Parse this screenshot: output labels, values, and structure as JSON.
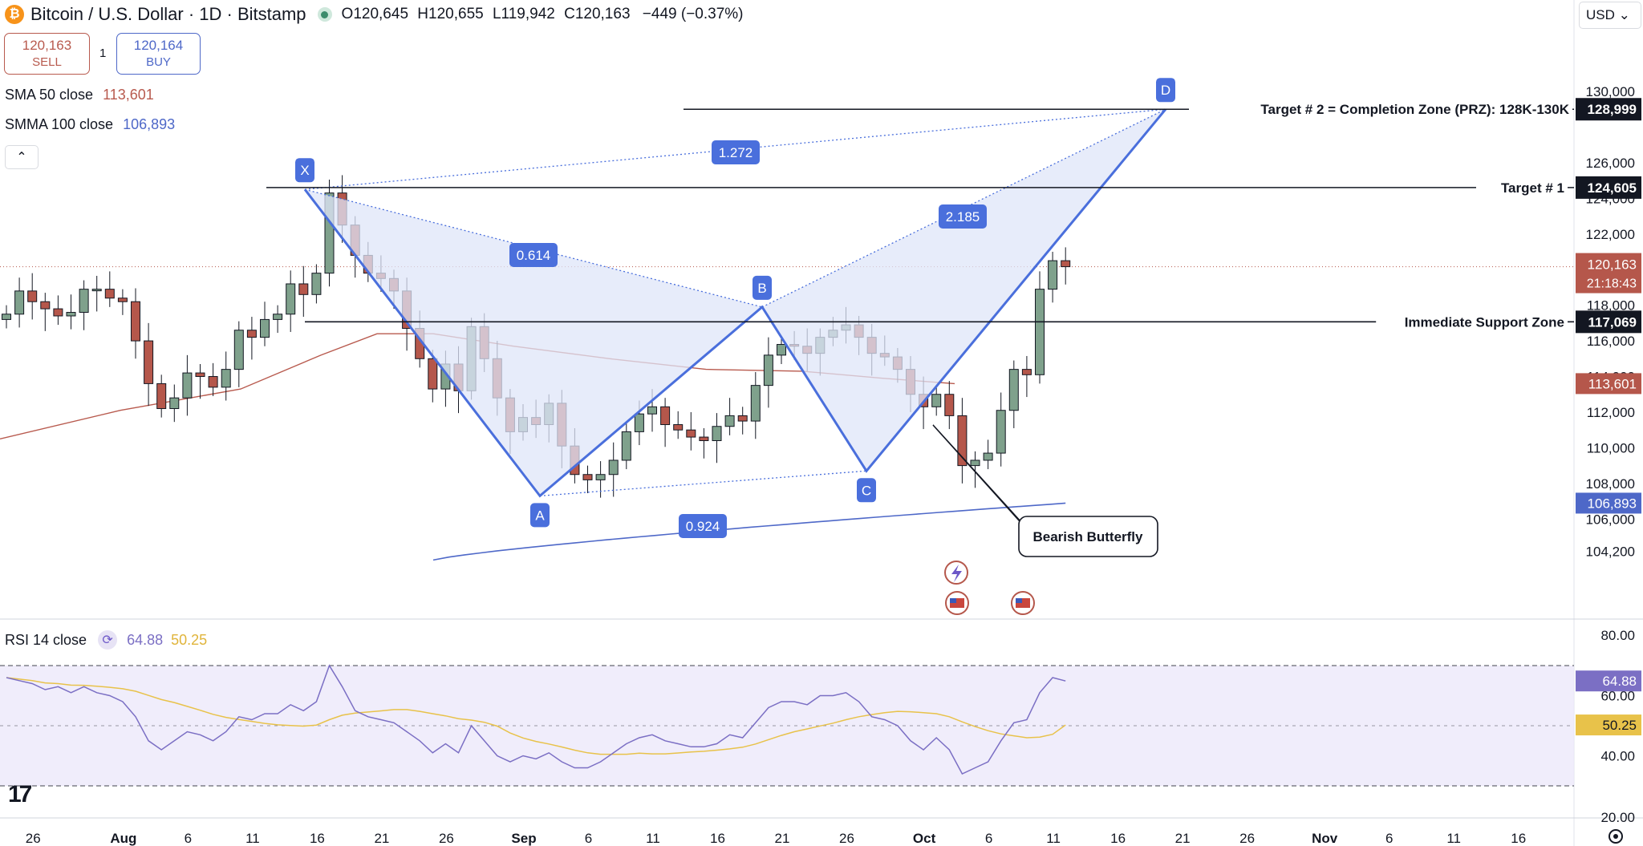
{
  "header": {
    "title": "Bitcoin / U.S. Dollar · 1D · Bitstamp",
    "open": "O120,645",
    "high": "H120,655",
    "low": "L119,942",
    "close": "C120,163",
    "change": "−449 (−0.37%)"
  },
  "trade": {
    "sell_price": "120,163",
    "sell_label": "SELL",
    "buy_price": "120,164",
    "buy_label": "BUY",
    "spread": "1"
  },
  "indicators": {
    "sma_label": "SMA 50 close",
    "sma_value": "113,601",
    "smma_label": "SMMA 100 close",
    "smma_value": "106,893",
    "rsi_label": "RSI 14 close",
    "rsi_value": "64.88",
    "rsi_ma_value": "50.25"
  },
  "currency": "USD",
  "colors": {
    "bull": "#7fa18c",
    "bear": "#b5574b",
    "sma": "#b85a4e",
    "smma": "#4e68c8",
    "pattern": "#4a6fdc",
    "fill": "#dfe5f8",
    "rsi": "#7b6fc4",
    "rsi_ma": "#e8c24a"
  },
  "chart_data": {
    "type": "candlestick",
    "x_ticks": [
      "26",
      "Aug",
      "6",
      "11",
      "16",
      "21",
      "26",
      "Sep",
      "6",
      "11",
      "16",
      "21",
      "26",
      "Oct",
      "6",
      "11",
      "16",
      "21",
      "26",
      "Nov",
      "6",
      "11",
      "16"
    ],
    "y_ticks": [
      "130,000",
      "126,000",
      "124,000",
      "122,000",
      "118,000",
      "116,000",
      "114,000",
      "112,000",
      "110,000",
      "108,000",
      "106,000",
      "104,200"
    ],
    "ylim": [
      103500,
      131000
    ],
    "candles_close": [
      117500,
      118800,
      118200,
      117800,
      117400,
      117600,
      118900,
      118900,
      118400,
      118200,
      116000,
      113600,
      112200,
      112800,
      114200,
      114000,
      113400,
      114400,
      116600,
      116200,
      117200,
      117500,
      119200,
      118600,
      119800,
      124300,
      122500,
      120800,
      119800,
      119500,
      118800,
      116700,
      115000,
      113300,
      114700,
      113200,
      116800,
      115000,
      112800,
      110900,
      111700,
      111300,
      112500,
      110100,
      108500,
      108200,
      108500,
      109300,
      110900,
      111900,
      112300,
      111300,
      111000,
      110600,
      110400,
      111200,
      111800,
      111500,
      113500,
      115200,
      115800,
      115700,
      115300,
      116200,
      116600,
      116900,
      116200,
      115300,
      115100,
      114400,
      113000,
      112300,
      113000,
      111800,
      109000,
      109300,
      109700,
      112100,
      114400,
      114100,
      118900,
      120500,
      120163
    ],
    "smma_100": {
      "start": 103700,
      "end": 106893
    },
    "sma_50": {
      "start": 110500,
      "end": 113601
    },
    "price_labels": [
      {
        "value": "128,999",
        "text": "Target # 2 = Completion Zone (PRZ): 128K-130K"
      },
      {
        "value": "124,605",
        "text": "Target # 1"
      },
      {
        "value": "117,069",
        "text": "Immediate Support Zone"
      }
    ],
    "current_price": "120,163",
    "countdown": "21:18:43",
    "pattern": {
      "name": "Bearish Butterfly",
      "points": [
        {
          "label": "X",
          "value": 124500
        },
        {
          "label": "A",
          "value": 107300
        },
        {
          "label": "B",
          "value": 117900
        },
        {
          "label": "C",
          "value": 108700
        },
        {
          "label": "D",
          "value": 129000
        }
      ],
      "ratios": [
        "1.272",
        "0.614",
        "2.185",
        "0.924"
      ]
    },
    "rsi": {
      "ylim": [
        20,
        80
      ],
      "y_ticks": [
        "80.00",
        "60.00",
        "40.00",
        "20.00"
      ],
      "bands": [
        70,
        50,
        30
      ],
      "values": [
        66,
        65,
        64,
        62,
        63,
        61,
        63,
        61,
        60,
        58,
        53,
        45,
        42,
        45,
        48,
        47,
        45,
        48,
        53,
        52,
        54,
        54,
        57,
        55,
        58,
        70,
        63,
        55,
        53,
        52,
        51,
        48,
        45,
        41,
        44,
        41,
        50,
        45,
        40,
        38,
        40,
        39,
        41,
        38,
        36,
        36,
        38,
        41,
        44,
        46,
        47,
        45,
        44,
        43,
        43,
        44,
        47,
        46,
        51,
        56,
        58,
        58,
        57,
        60,
        60,
        61,
        58,
        53,
        52,
        50,
        45,
        42,
        46,
        42,
        34,
        36,
        38,
        45,
        51,
        52,
        61,
        66,
        64.88
      ],
      "ma_end": 50.25
    }
  }
}
